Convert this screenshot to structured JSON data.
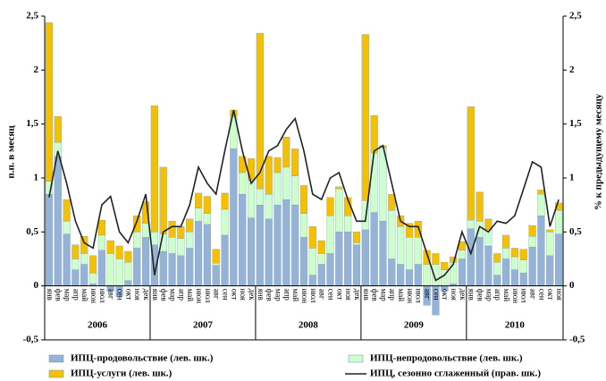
{
  "chart_data": {
    "type": "bar",
    "y_label": "п.п. в месяц",
    "y2_label": "% к предыдущему месяцу",
    "categories": [
      "янв",
      "фев",
      "мар",
      "апр",
      "май",
      "июн",
      "июл",
      "авг",
      "сен",
      "окт",
      "ноя",
      "дек",
      "янв",
      "фев",
      "мар",
      "апр",
      "май",
      "июн",
      "июл",
      "авг",
      "сен",
      "окт",
      "ноя",
      "дек",
      "янв",
      "фев",
      "мар",
      "апр",
      "май",
      "июн",
      "июл",
      "авг",
      "сен",
      "окт",
      "ноя",
      "дек",
      "янв",
      "фев",
      "мар",
      "апр",
      "май",
      "июн",
      "июл",
      "авг",
      "сен",
      "окт",
      "ноя",
      "дек",
      "янв",
      "фев",
      "мар",
      "апр",
      "май",
      "июн",
      "июл",
      "авг",
      "сен",
      "окт",
      "ноя"
    ],
    "years": [
      "2006",
      "2007",
      "2008",
      "2009",
      "2010"
    ],
    "series": [
      {
        "name": "ИПЦ-продовольствие (лев. шк.)",
        "color": "#95b3d7",
        "axis": "y",
        "values": [
          0.85,
          1.2,
          0.48,
          0.15,
          0.2,
          0.02,
          0.33,
          -0.05,
          -0.1,
          0.05,
          0.35,
          0.45,
          0.38,
          0.32,
          0.3,
          0.28,
          0.35,
          0.6,
          0.57,
          0.19,
          0.47,
          1.27,
          0.85,
          0.63,
          0.75,
          0.62,
          0.75,
          0.8,
          0.75,
          0.45,
          0.1,
          0.2,
          0.3,
          0.5,
          0.5,
          0.38,
          0.52,
          0.68,
          0.6,
          0.25,
          0.2,
          0.15,
          0.2,
          -0.18,
          -0.27,
          -0.05,
          0.02,
          0.25,
          0.53,
          0.45,
          0.37,
          0.1,
          0.25,
          0.15,
          0.12,
          0.36,
          0.65,
          0.28,
          0.48
        ]
      },
      {
        "name": "ИПЦ-непродовольствие (лев. шк.)",
        "color": "#ccffcc",
        "axis": "y",
        "values": [
          0.12,
          0.13,
          0.12,
          0.1,
          0.1,
          0.1,
          0.14,
          0.3,
          0.25,
          0.17,
          0.15,
          0.13,
          0.12,
          0.16,
          0.15,
          0.16,
          0.15,
          0.12,
          0.1,
          0.02,
          0.24,
          0.3,
          0.2,
          0.35,
          0.15,
          0.23,
          0.3,
          0.3,
          0.27,
          0.22,
          0.25,
          0.1,
          0.35,
          0.4,
          0.15,
          0.02,
          0.27,
          0.55,
          0.68,
          0.45,
          0.35,
          0.3,
          0.25,
          0.2,
          0.2,
          0.15,
          0.2,
          0.08,
          0.08,
          0.15,
          0.15,
          0.12,
          0.1,
          0.12,
          0.12,
          0.1,
          0.2,
          0.22,
          0.22
        ]
      },
      {
        "name": "ИПЦ-услуги (лев. шк.)",
        "color": "#f5c000",
        "axis": "y",
        "values": [
          1.47,
          0.24,
          0.2,
          0.13,
          0.16,
          0.16,
          0.14,
          0.12,
          0.12,
          0.1,
          0.15,
          0.2,
          1.17,
          0.62,
          0.15,
          0.11,
          0.12,
          0.14,
          0.16,
          0.13,
          0.15,
          0.06,
          0.15,
          0.2,
          1.44,
          0.35,
          0.14,
          0.28,
          0.25,
          0.26,
          0.2,
          0.12,
          0.17,
          0.02,
          0.17,
          0.1,
          1.54,
          0.35,
          0.02,
          0.15,
          0.1,
          0.13,
          0.15,
          0.13,
          0.1,
          0.07,
          0.05,
          0.08,
          1.05,
          0.27,
          0.1,
          0.08,
          0.12,
          0.08,
          0.1,
          0.1,
          0.04,
          0.02,
          0.07
        ]
      },
      {
        "name": "ИПЦ, сезонно сглаженный (прав. шк.)",
        "color": "#222222",
        "axis": "y2",
        "type": "line",
        "values": [
          0.82,
          1.25,
          0.95,
          0.6,
          0.4,
          0.35,
          0.75,
          0.83,
          0.5,
          0.4,
          0.6,
          0.85,
          0.1,
          0.5,
          0.55,
          0.55,
          0.75,
          1.1,
          0.95,
          0.85,
          1.25,
          1.63,
          1.25,
          0.95,
          1.05,
          1.25,
          1.3,
          1.45,
          1.55,
          1.25,
          0.85,
          0.8,
          1.0,
          1.05,
          0.8,
          0.6,
          0.6,
          1.25,
          1.3,
          0.95,
          0.6,
          0.55,
          0.55,
          0.3,
          0.05,
          0.1,
          0.2,
          0.5,
          0.3,
          0.55,
          0.5,
          0.6,
          0.58,
          0.65,
          0.9,
          1.15,
          1.1,
          0.55,
          0.8
        ]
      }
    ],
    "ylim": [
      -0.5,
      2.5
    ],
    "yticks": [
      {
        "value": -0.5,
        "label": "-0,5"
      },
      0,
      {
        "value": 0.5,
        "label": "0,5"
      },
      1,
      {
        "value": 1.5,
        "label": "1,5"
      },
      2,
      {
        "value": 2.5,
        "label": "2,5"
      }
    ],
    "y2lim": [
      -0.5,
      2.5
    ],
    "y2ticks": [
      {
        "value": -0.5,
        "label": "-0,5"
      },
      0,
      {
        "value": 0.5,
        "label": "0,5"
      },
      1,
      {
        "value": 1.5,
        "label": "1,5"
      },
      2,
      {
        "value": 2.5,
        "label": "2,5"
      }
    ]
  }
}
